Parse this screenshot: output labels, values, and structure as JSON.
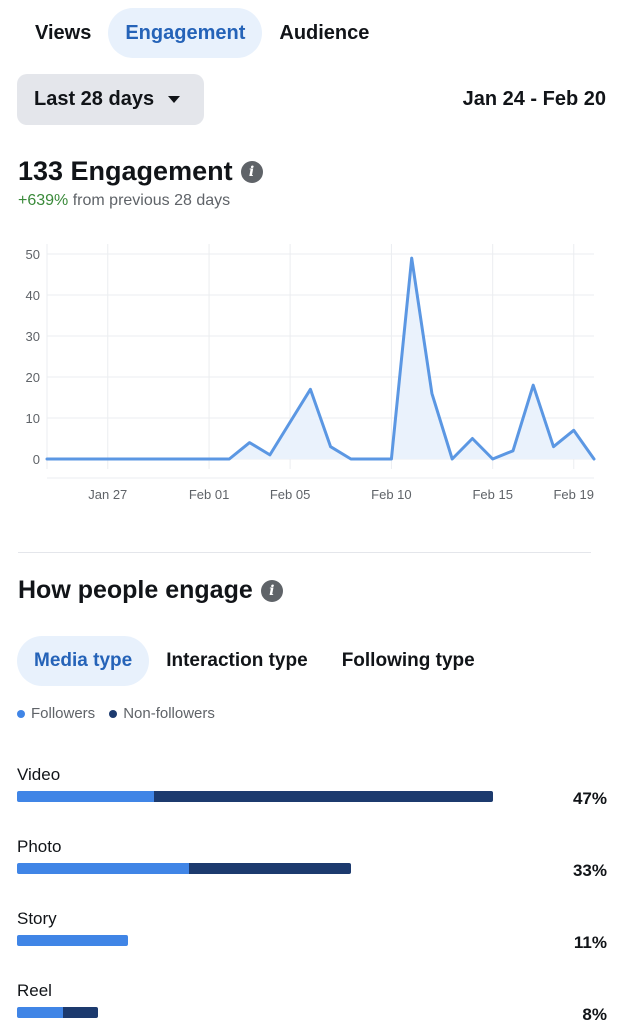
{
  "tabs": [
    {
      "label": "Views",
      "active": false
    },
    {
      "label": "Engagement",
      "active": true
    },
    {
      "label": "Audience",
      "active": false
    }
  ],
  "range": {
    "label": "Last 28 days",
    "dates": "Jan 24 - Feb 20"
  },
  "summary": {
    "title": "133 Engagement",
    "delta": "+639%",
    "delta_suffix": "from previous 28 days"
  },
  "chart_data": {
    "type": "area",
    "x": [
      "Jan 24",
      "Jan 25",
      "Jan 26",
      "Jan 27",
      "Jan 28",
      "Jan 29",
      "Jan 30",
      "Jan 31",
      "Feb 01",
      "Feb 02",
      "Feb 03",
      "Feb 04",
      "Feb 05",
      "Feb 06",
      "Feb 07",
      "Feb 08",
      "Feb 09",
      "Feb 10",
      "Feb 11",
      "Feb 12",
      "Feb 13",
      "Feb 14",
      "Feb 15",
      "Feb 16",
      "Feb 17",
      "Feb 18",
      "Feb 19",
      "Feb 20"
    ],
    "values": [
      0,
      0,
      0,
      0,
      0,
      0,
      0,
      0,
      0,
      0,
      4,
      1,
      9,
      17,
      3,
      0,
      0,
      0,
      49,
      16,
      0,
      5,
      0,
      2,
      18,
      3,
      7,
      0
    ],
    "xticks": [
      "Jan 27",
      "Feb 01",
      "Feb 05",
      "Feb 10",
      "Feb 15",
      "Feb 19"
    ],
    "yticks": [
      0,
      10,
      20,
      30,
      40,
      50
    ],
    "ylim": [
      0,
      50
    ],
    "grid": true,
    "line_color": "#5b97e3",
    "fill_color": "#eaf2fc"
  },
  "engage": {
    "title": "How people engage",
    "subtabs": [
      {
        "label": "Media type",
        "active": true
      },
      {
        "label": "Interaction type",
        "active": false
      },
      {
        "label": "Following type",
        "active": false
      }
    ],
    "legend": [
      {
        "label": "Followers",
        "color": "#4085e6"
      },
      {
        "label": "Non-followers",
        "color": "#1c3a6e"
      }
    ],
    "rows": [
      {
        "label": "Video",
        "pct": "47%",
        "total": 47,
        "followers": 13.5,
        "non_followers": 33.5
      },
      {
        "label": "Photo",
        "pct": "33%",
        "total": 33,
        "followers": 17,
        "non_followers": 16
      },
      {
        "label": "Story",
        "pct": "11%",
        "total": 11,
        "followers": 11,
        "non_followers": 0
      },
      {
        "label": "Reel",
        "pct": "8%",
        "total": 8,
        "followers": 4.5,
        "non_followers": 3.5
      }
    ]
  }
}
